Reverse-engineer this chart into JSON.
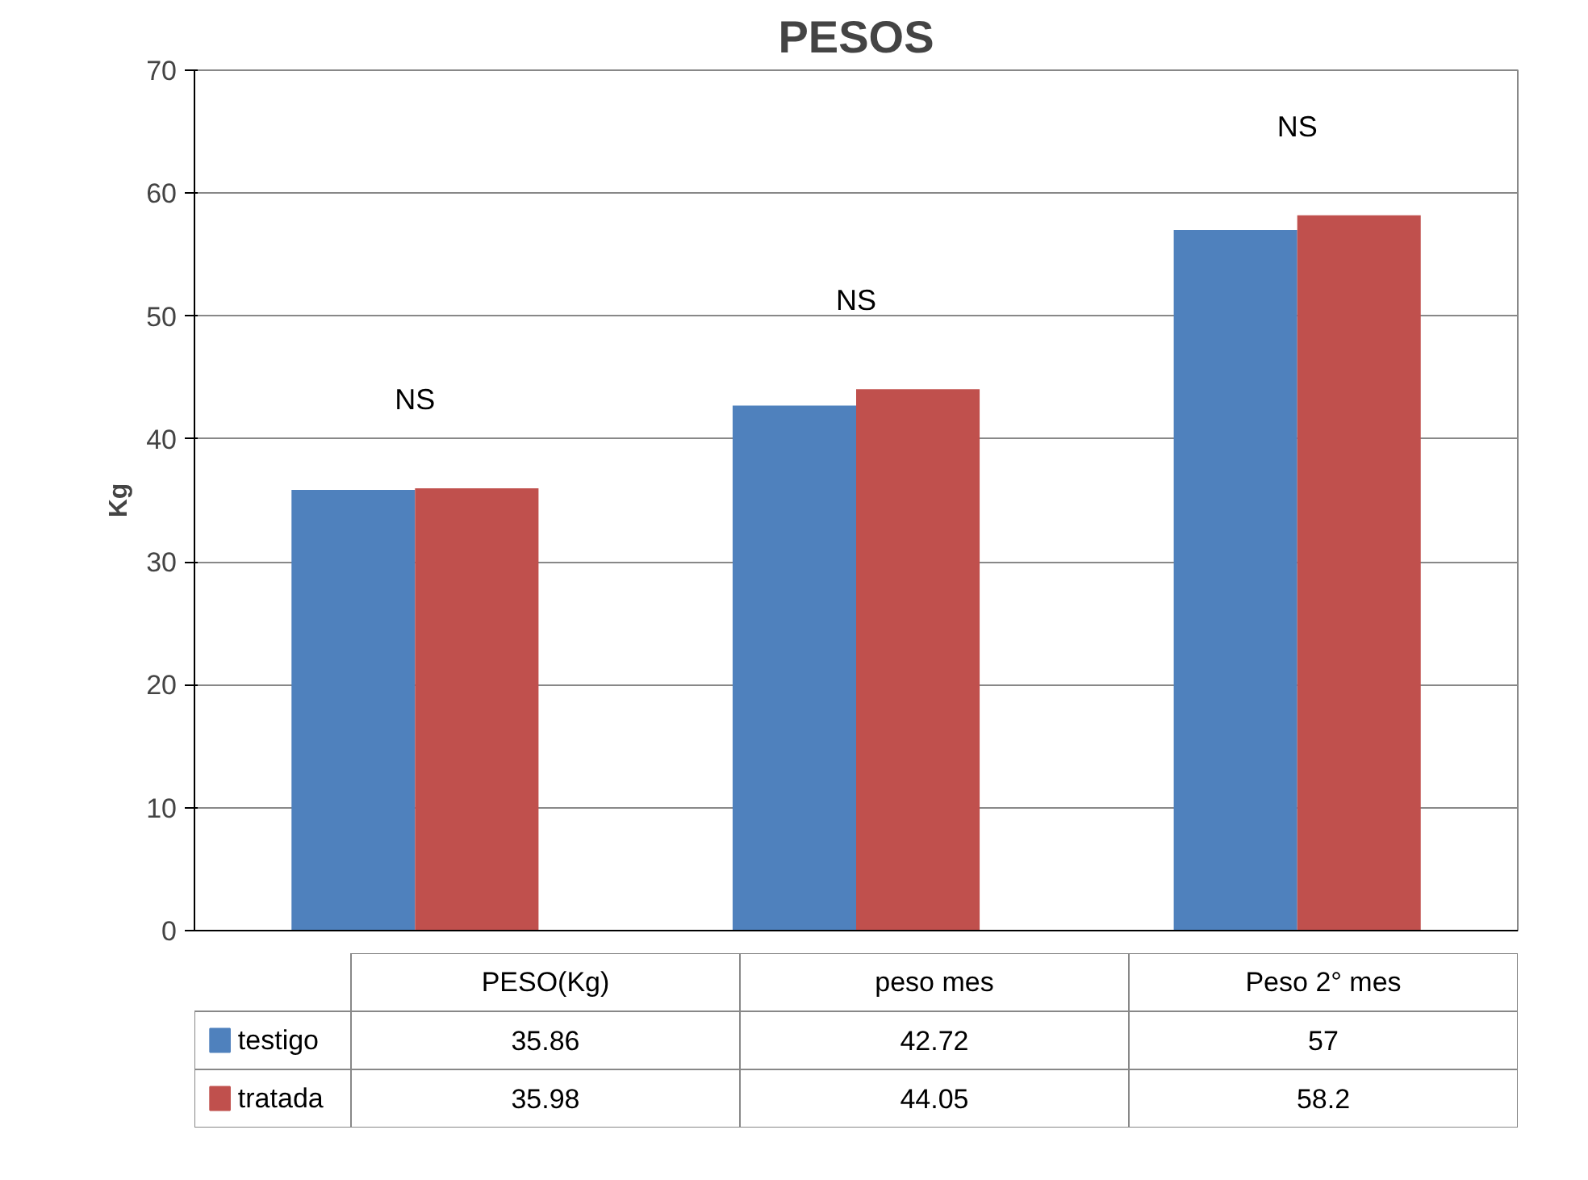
{
  "chart_data": {
    "type": "bar",
    "title": "PESOS",
    "ylabel": "Kg",
    "categories": [
      "PESO(Kg)",
      "peso mes",
      "Peso 2° mes"
    ],
    "series": [
      {
        "name": "testigo",
        "color": "#4f81bd",
        "values": [
          35.86,
          42.72,
          57
        ]
      },
      {
        "name": "tratada",
        "color": "#c0504d",
        "values": [
          35.98,
          44.05,
          58.2
        ]
      }
    ],
    "ylim": [
      0,
      70
    ],
    "yticks": [
      0,
      10,
      20,
      30,
      40,
      50,
      60,
      70
    ],
    "grid": "y",
    "data_labels": true,
    "legend": "bottom left",
    "annotations": [
      "NS",
      "NS",
      "NS"
    ]
  }
}
